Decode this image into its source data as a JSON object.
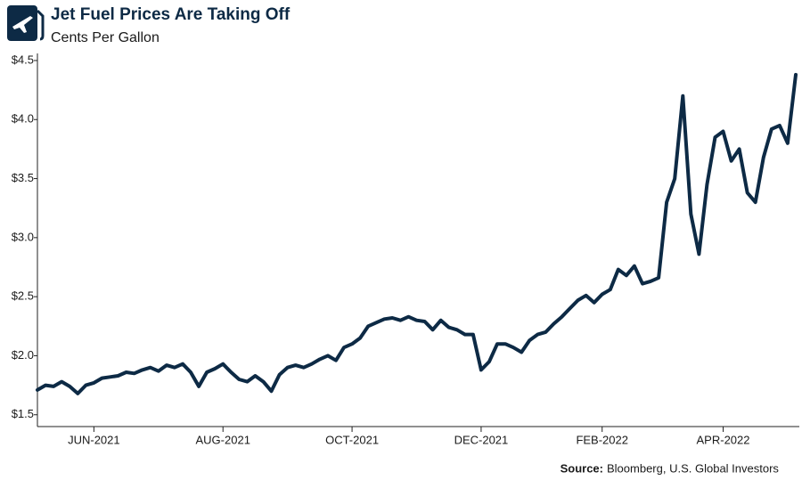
{
  "chart_data": {
    "type": "line",
    "title": "Jet Fuel Prices Are Taking Off",
    "subtitle": "Cents Per Gallon",
    "source_label": "Source:",
    "source_text": "Bloomberg, U.S. Global Investors",
    "color": "#0d2a45",
    "categories": [
      null,
      null,
      null,
      null,
      null,
      null,
      null,
      "JUN-2021",
      null,
      null,
      null,
      null,
      null,
      null,
      null,
      null,
      null,
      null,
      null,
      null,
      null,
      null,
      null,
      "AUG-2021",
      null,
      null,
      null,
      null,
      null,
      null,
      null,
      null,
      null,
      null,
      null,
      null,
      null,
      null,
      null,
      "OCT-2021",
      null,
      null,
      null,
      null,
      null,
      null,
      null,
      null,
      null,
      null,
      null,
      null,
      null,
      null,
      null,
      "DEC-2021",
      null,
      null,
      null,
      null,
      null,
      null,
      null,
      null,
      null,
      null,
      null,
      null,
      null,
      null,
      "FEB-2022",
      null,
      null,
      null,
      null,
      null,
      null,
      null,
      null,
      null,
      null,
      null,
      null,
      null,
      null,
      "APR-2022",
      null,
      null,
      null,
      null,
      null,
      null,
      null,
      null,
      null
    ],
    "values": [
      1.71,
      1.75,
      1.74,
      1.78,
      1.74,
      1.68,
      1.75,
      1.77,
      1.81,
      1.82,
      1.83,
      1.86,
      1.85,
      1.88,
      1.9,
      1.87,
      1.92,
      1.9,
      1.93,
      1.86,
      1.74,
      1.86,
      1.89,
      1.93,
      1.86,
      1.8,
      1.78,
      1.83,
      1.78,
      1.7,
      1.84,
      1.9,
      1.92,
      1.9,
      1.93,
      1.97,
      2.0,
      1.96,
      2.07,
      2.1,
      2.15,
      2.25,
      2.28,
      2.31,
      2.32,
      2.3,
      2.33,
      2.3,
      2.29,
      2.22,
      2.3,
      2.24,
      2.22,
      2.18,
      2.18,
      1.88,
      1.95,
      2.1,
      2.1,
      2.07,
      2.03,
      2.13,
      2.18,
      2.2,
      2.27,
      2.33,
      2.4,
      2.47,
      2.51,
      2.45,
      2.52,
      2.56,
      2.73,
      2.68,
      2.76,
      2.61,
      2.63,
      2.66,
      3.3,
      3.5,
      4.2,
      3.2,
      2.86,
      3.45,
      3.85,
      3.9,
      3.65,
      3.75,
      3.38,
      3.3,
      3.68,
      3.92,
      3.95,
      3.8,
      4.38
    ],
    "ylim": [
      1.4,
      4.56
    ],
    "yticks": [
      {
        "value": 1.5,
        "label": "$1.5"
      },
      {
        "value": 2.0,
        "label": "$2.0"
      },
      {
        "value": 2.5,
        "label": "$2.5"
      },
      {
        "value": 3.0,
        "label": "$3.0"
      },
      {
        "value": 3.5,
        "label": "$3.5"
      },
      {
        "value": 4.0,
        "label": "$4.0"
      },
      {
        "value": 4.5,
        "label": "$4.5"
      }
    ]
  }
}
